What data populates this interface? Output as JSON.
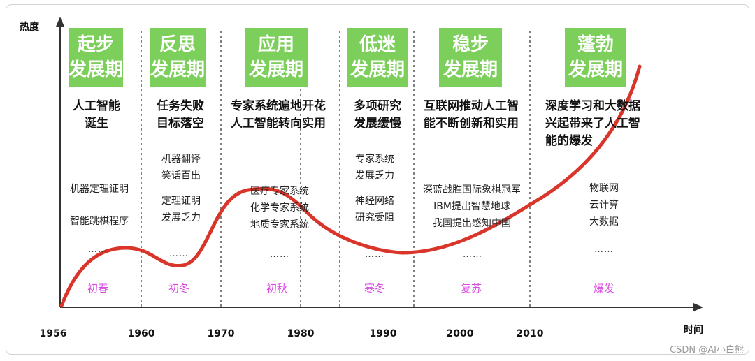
{
  "axis": {
    "y_label": "热度",
    "x_label": "时间"
  },
  "years": [
    "1956",
    "1960",
    "1970",
    "1980",
    "1990",
    "2000",
    "2010"
  ],
  "phases": [
    {
      "title_line1": "起步",
      "title_line2": "发展期",
      "event_lines": [
        "人工智能",
        "诞生"
      ],
      "details": [
        "机器定理证明",
        "智能跳棋程序"
      ],
      "ellipsis": "……",
      "season": "初春"
    },
    {
      "title_line1": "反思",
      "title_line2": "发展期",
      "event_lines": [
        "任务失败",
        "目标落空"
      ],
      "details": [
        "机器翻译",
        "笑话百出",
        "定理证明",
        "发展乏力"
      ],
      "ellipsis": "……",
      "season": "初冬"
    },
    {
      "title_line1": "应用",
      "title_line2": "发展期",
      "event_lines": [
        "专家系统遍地开花",
        "人工智能转向实用"
      ],
      "details": [
        "医疗专家系统",
        "化学专家系统",
        "地质专家系统"
      ],
      "ellipsis": "……",
      "season": "初秋"
    },
    {
      "title_line1": "低迷",
      "title_line2": "发展期",
      "event_lines": [
        "多项研究",
        "发展缓慢"
      ],
      "details": [
        "专家系统",
        "发展乏力",
        "神经网络",
        "研究受阻"
      ],
      "ellipsis": "……",
      "season": "寒冬"
    },
    {
      "title_line1": "稳步",
      "title_line2": "发展期",
      "event_lines": [
        "互联网推动人工智",
        "能不断创新和实用"
      ],
      "details": [
        "深蓝战胜国际象棋冠军",
        "IBM提出智慧地球",
        "我国提出感知中国"
      ],
      "ellipsis": "……",
      "season": "复苏"
    },
    {
      "title_line1": "蓬勃",
      "title_line2": "发展期",
      "event_lines": [
        "深度学习和大数据",
        "兴起带来了人工智",
        "能的爆发"
      ],
      "details": [
        "物联网",
        "云计算",
        "大数据"
      ],
      "ellipsis": "……",
      "season": "爆发"
    }
  ],
  "colors": {
    "phase_box": "#7ccf5b",
    "curve": "#d9352a",
    "season_text": "#d94be0",
    "axis": "#333333"
  },
  "watermark": "CSDN @AI小白熊"
}
